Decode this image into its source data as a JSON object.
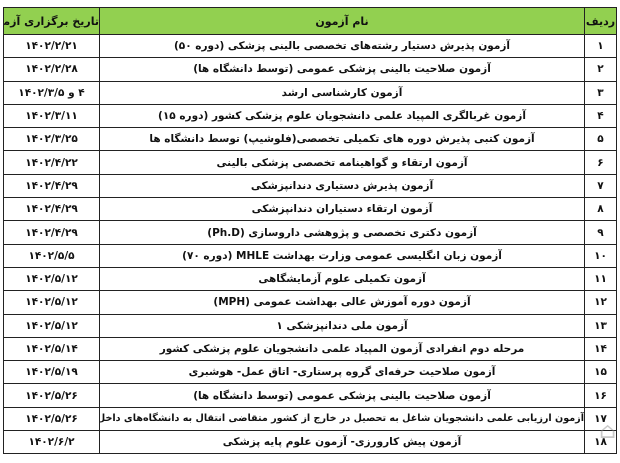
{
  "headers": {
    "index": "ردیف",
    "name": "نام آزمون",
    "date": "تاریخ برگزاری آزمون"
  },
  "rows": [
    {
      "index": "۱",
      "name": "آزمون پذیرش دستیار رشته‌های تخصصی بالینی پزشکی (دوره ۵۰)",
      "date": "۱۴۰۲/۲/۲۱"
    },
    {
      "index": "۲",
      "name": "آزمون صلاحیت بالینی پزشکی عمومی (توسط دانشگاه ها)",
      "date": "۱۴۰۲/۲/۲۸"
    },
    {
      "index": "۳",
      "name": "آزمون کارشناسی ارشد",
      "date": "۴ و ۱۴۰۲/۳/۵"
    },
    {
      "index": "۴",
      "name": "آزمون غربالگری المپیاد علمی دانشجویان علوم پزشکی کشور (دوره ۱۵)",
      "date": "۱۴۰۲/۳/۱۱"
    },
    {
      "index": "۵",
      "name": "آزمون کتبی پذیرش دوره های تکمیلی تخصصی(فلوشیپ) توسط دانشگاه ها",
      "date": "۱۴۰۲/۳/۲۵"
    },
    {
      "index": "۶",
      "name": "آزمون ارتقاء و گواهینامه تخصصی پزشکی بالینی",
      "date": "۱۴۰۲/۴/۲۲"
    },
    {
      "index": "۷",
      "name": "آزمون پذیرش دستیاری دندانپزشکی",
      "date": "۱۴۰۲/۴/۲۹"
    },
    {
      "index": "۸",
      "name": "آزمون ارتقاء دستیاران دندانپزشکی",
      "date": "۱۴۰۲/۴/۲۹"
    },
    {
      "index": "۹",
      "name": "آزمون دکتری تخصصی و پژوهشی داروسازی (Ph.D)",
      "date": "۱۴۰۲/۴/۲۹"
    },
    {
      "index": "۱۰",
      "name": "آزمون زبان انگلیسی عمومی وزارت بهداشت MHLE (دوره ۷۰)",
      "date": "۱۴۰۲/۵/۵"
    },
    {
      "index": "۱۱",
      "name": "آزمون تکمیلی علوم آزمایشگاهی",
      "date": "۱۴۰۲/۵/۱۲"
    },
    {
      "index": "۱۲",
      "name": "آزمون دوره آموزش عالی بهداشت عمومی (MPH)",
      "date": "۱۴۰۲/۵/۱۲"
    },
    {
      "index": "۱۳",
      "name": "آزمون ملی دندانپزشکی ۱",
      "date": "۱۴۰۲/۵/۱۲"
    },
    {
      "index": "۱۴",
      "name": "مرحله دوم انفرادی آزمون المپیاد علمی دانشجویان علوم پزشکی کشور",
      "date": "۱۴۰۲/۵/۱۴"
    },
    {
      "index": "۱۵",
      "name": "آزمون صلاحیت حرفه‌ای گروه پرستاری- اتاق عمل- هوشبری",
      "date": "۱۴۰۲/۵/۱۹"
    },
    {
      "index": "۱۶",
      "name": "آزمون صلاحیت بالینی پزشکی عمومی (توسط دانشگاه ها)",
      "date": "۱۴۰۲/۵/۲۶"
    },
    {
      "index": "۱۷",
      "name": "آزمون ارزیابی علمی دانشجویان شاغل به تحصیل در خارج از کشور متقاضی انتقال به دانشگاه‌های داخل",
      "date": "۱۴۰۲/۵/۲۶"
    },
    {
      "index": "۱۸",
      "name": "آزمون پیش کارورزی- آزمون علوم پایه پزشکی",
      "date": "۱۴۰۲/۶/۲"
    }
  ],
  "watermark": "ستاره",
  "colors": {
    "header_bg": "#92d050",
    "border": "#222222"
  }
}
